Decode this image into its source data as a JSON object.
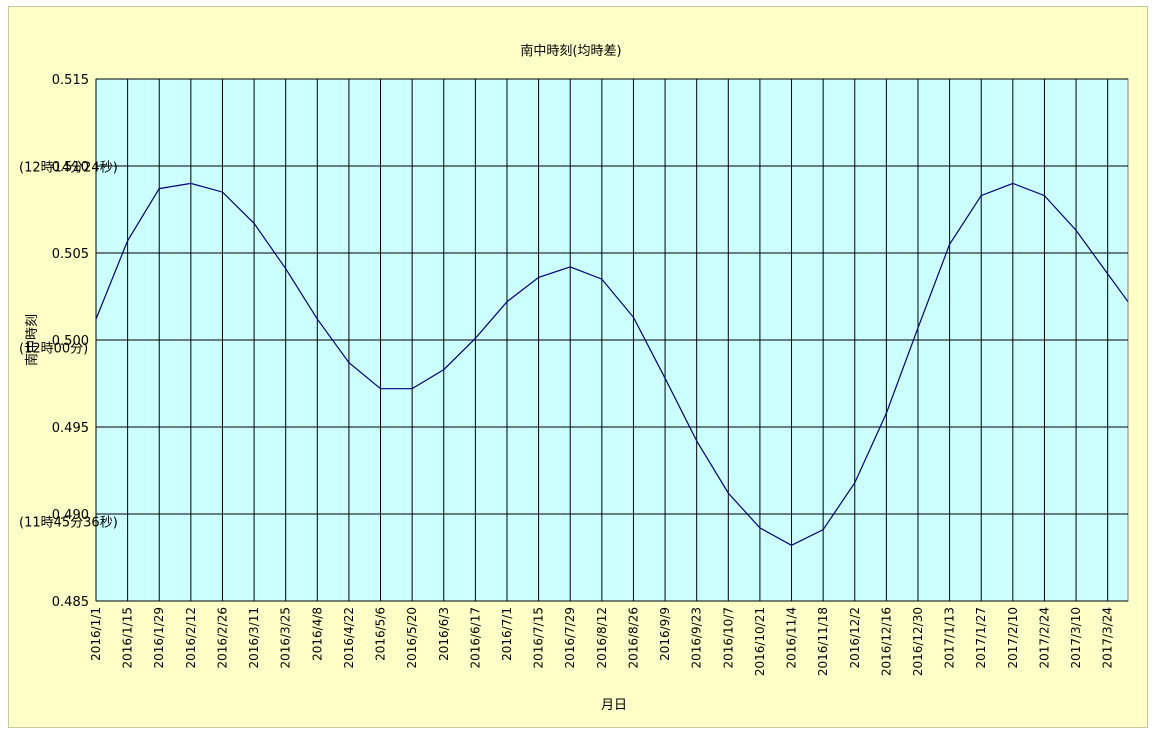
{
  "chart_data": {
    "type": "line",
    "title": "南中時刻(均時差)",
    "xlabel": "月日",
    "ylabel": "南中時刻",
    "ylim": [
      0.485,
      0.515
    ],
    "yticks": [
      "0.485",
      "0.490",
      "0.495",
      "0.500",
      "0.505",
      "0.510",
      "0.515"
    ],
    "xlim": [
      "2016/1/1",
      "2017/4/2"
    ],
    "xtick_labels": [
      "2016/1/1",
      "2016/1/15",
      "2016/1/29",
      "2016/2/12",
      "2016/2/26",
      "2016/3/11",
      "2016/3/25",
      "2016/4/8",
      "2016/4/22",
      "2016/5/6",
      "2016/5/20",
      "2016/6/3",
      "2016/6/17",
      "2016/7/1",
      "2016/7/15",
      "2016/7/29",
      "2016/8/12",
      "2016/8/26",
      "2016/9/9",
      "2016/9/23",
      "2016/10/7",
      "2016/10/21",
      "2016/11/4",
      "2016/11/18",
      "2016/12/2",
      "2016/12/16",
      "2016/12/30",
      "2017/1/13",
      "2017/1/27",
      "2017/2/10",
      "2017/2/24",
      "2017/3/10",
      "2017/3/24"
    ],
    "annotations": [
      {
        "text": "(12時14分24秒)",
        "y": 0.5099
      },
      {
        "text": "(12時00分)",
        "y": 0.4995
      },
      {
        "text": "(11時45分36秒)",
        "y": 0.4895
      }
    ],
    "grid": true,
    "legend": "none",
    "series": [
      {
        "x": [
          "2016/1/1",
          "2016/1/15",
          "2016/1/29",
          "2016/2/12",
          "2016/2/26",
          "2016/3/11",
          "2016/3/25",
          "2016/4/8",
          "2016/4/22",
          "2016/5/6",
          "2016/5/20",
          "2016/6/3",
          "2016/6/17",
          "2016/7/1",
          "2016/7/15",
          "2016/7/29",
          "2016/8/12",
          "2016/8/26",
          "2016/9/9",
          "2016/9/23",
          "2016/10/7",
          "2016/10/21",
          "2016/11/4",
          "2016/11/18",
          "2016/12/2",
          "2016/12/16",
          "2016/12/30",
          "2017/1/13",
          "2017/1/27",
          "2017/2/10",
          "2017/2/24",
          "2017/3/10",
          "2017/3/24",
          "2017/4/2"
        ],
        "values": [
          0.5012,
          0.5057,
          0.5087,
          0.509,
          0.5085,
          0.5067,
          0.5041,
          0.5012,
          0.4987,
          0.4972,
          0.4972,
          0.4983,
          0.5001,
          0.5022,
          0.5036,
          0.5042,
          0.5035,
          0.5013,
          0.4978,
          0.4942,
          0.4912,
          0.4892,
          0.4882,
          0.4891,
          0.4918,
          0.4958,
          0.5007,
          0.5055,
          0.5083,
          0.509,
          0.5083,
          0.5063,
          0.5038,
          0.5022
        ]
      }
    ],
    "colors": {
      "plot_bg": "#ccffff",
      "outer_bg": "#ffffc8",
      "line": "#000080",
      "grid": "#000000"
    }
  }
}
